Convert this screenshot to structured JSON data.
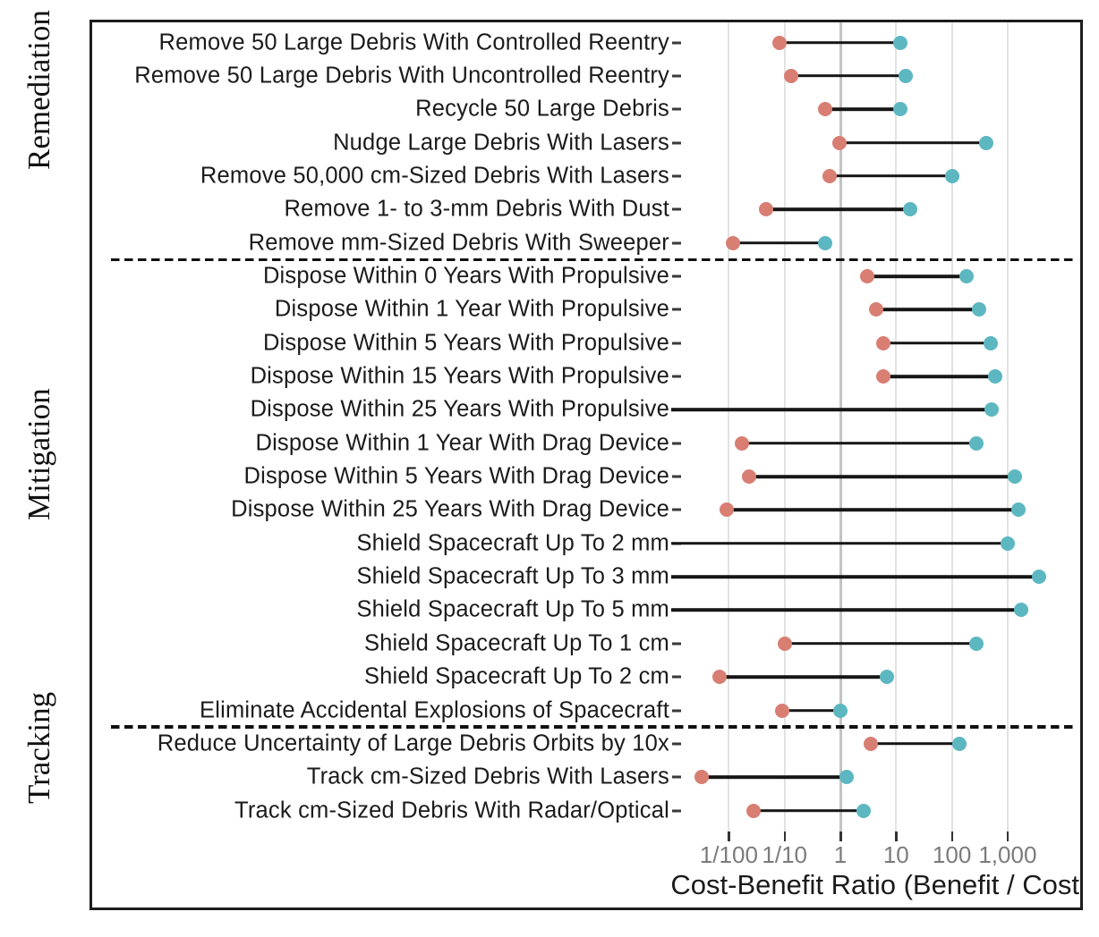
{
  "figure": {
    "background": "#ffffff",
    "frame_color": "#1c1c1c"
  },
  "chart_data": {
    "type": "scatter",
    "variant": "dumbbell-range",
    "title": "",
    "xlabel": "Cost-Benefit Ratio (Benefit / Cost",
    "ylabel": "",
    "x_scale": "log",
    "xlim": [
      0.002,
      8000
    ],
    "grid": "vertical-only",
    "legend_position": "none",
    "x_ticks": [
      {
        "value": 0.01,
        "label": "1/100"
      },
      {
        "value": 0.1,
        "label": "1/10"
      },
      {
        "value": 1,
        "label": "1"
      },
      {
        "value": 10,
        "label": "10"
      },
      {
        "value": 100,
        "label": "100"
      },
      {
        "value": 1000,
        "label": "1,000"
      }
    ],
    "series": [
      {
        "name": "low-estimate",
        "color": "#D87E73"
      },
      {
        "name": "high-estimate",
        "color": "#5CB7C1"
      }
    ],
    "connector_color": "#161616",
    "groups": [
      {
        "label": "Remediation",
        "items": [
          {
            "label": "Remove 50 Large Debris With Controlled Reentry",
            "low": 0.08,
            "high": 12,
            "low_offscale": false
          },
          {
            "label": "Remove 50 Large Debris With Uncontrolled Reentry",
            "low": 0.13,
            "high": 15,
            "low_offscale": false
          },
          {
            "label": "Recycle 50 Large Debris",
            "low": 0.53,
            "high": 12,
            "low_offscale": false
          },
          {
            "label": "Nudge Large Debris With Lasers",
            "low": 0.95,
            "high": 420,
            "low_offscale": false
          },
          {
            "label": "Remove 50,000 cm-Sized Debris With Lasers",
            "low": 0.65,
            "high": 100,
            "low_offscale": false
          },
          {
            "label": "Remove 1- to 3-mm Debris With Dust",
            "low": 0.046,
            "high": 18,
            "low_offscale": false
          },
          {
            "label": "Remove mm-Sized Debris With Sweeper",
            "low": 0.012,
            "high": 0.53,
            "low_offscale": false
          }
        ]
      },
      {
        "label": "Mitigation",
        "items": [
          {
            "label": "Dispose Within 0 Years With Propulsive",
            "low": 3.0,
            "high": 180,
            "low_offscale": false
          },
          {
            "label": "Dispose Within 1 Year With Propulsive",
            "low": 4.4,
            "high": 310,
            "low_offscale": false
          },
          {
            "label": "Dispose Within 5 Years With Propulsive",
            "low": 6.0,
            "high": 490,
            "low_offscale": false
          },
          {
            "label": "Dispose Within 15 Years With Propulsive",
            "low": 6.0,
            "high": 600,
            "low_offscale": false
          },
          {
            "label": "Dispose Within 25 Years With Propulsive",
            "low": null,
            "high": 520,
            "low_offscale": true
          },
          {
            "label": "Dispose Within 1 Year With Drag Device",
            "low": 0.017,
            "high": 280,
            "low_offscale": false
          },
          {
            "label": "Dispose Within 5 Years With Drag Device",
            "low": 0.023,
            "high": 1350,
            "low_offscale": false
          },
          {
            "label": "Dispose Within 25 Years With Drag Device",
            "low": 0.009,
            "high": 1580,
            "low_offscale": false
          },
          {
            "label": "Shield Spacecraft Up To 2 mm",
            "low": null,
            "high": 1000,
            "low_offscale": true
          },
          {
            "label": "Shield Spacecraft Up To 3 mm",
            "low": null,
            "high": 3700,
            "low_offscale": true
          },
          {
            "label": "Shield Spacecraft Up To 5 mm",
            "low": null,
            "high": 1750,
            "low_offscale": true
          },
          {
            "label": "Shield Spacecraft Up To 1 cm",
            "low": 0.1,
            "high": 280,
            "low_offscale": false
          },
          {
            "label": "Shield Spacecraft Up To 2 cm",
            "low": 0.0068,
            "high": 6.8,
            "low_offscale": false
          },
          {
            "label": "Eliminate Accidental Explosions of Spacecraft",
            "low": 0.09,
            "high": 1.0,
            "low_offscale": false
          }
        ]
      },
      {
        "label": "Tracking",
        "items": [
          {
            "label": "Reduce Uncertainty of Large Debris Orbits by 10x",
            "low": 3.5,
            "high": 135,
            "low_offscale": false
          },
          {
            "label": "Track cm-Sized Debris With Lasers",
            "low": 0.0032,
            "high": 1.3,
            "low_offscale": false
          },
          {
            "label": "Track cm-Sized Debris With Radar/Optical",
            "low": 0.028,
            "high": 2.6,
            "low_offscale": false
          }
        ]
      }
    ]
  }
}
